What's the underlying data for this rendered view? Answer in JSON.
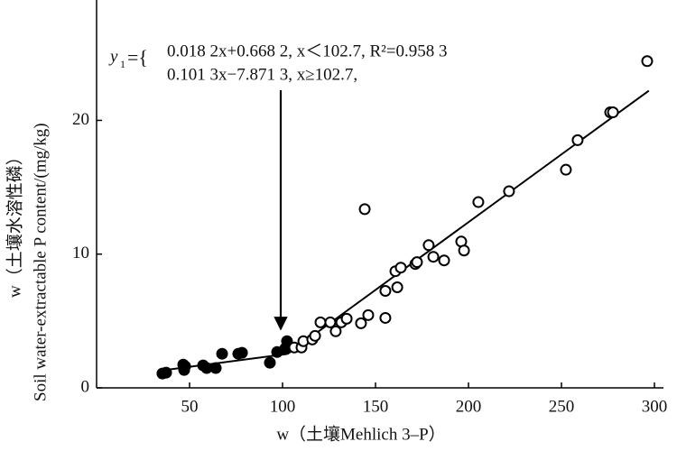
{
  "chart_data": {
    "type": "scatter",
    "x_label": "w（土壤Mehlich 3–P）",
    "y_label": [
      "w（土壤水溶性磷）",
      "Soil water-extractable P content/(mg/kg)"
    ],
    "annotation": {
      "label": "y",
      "subscript": "1",
      "sign": "={",
      "lines": [
        "0.018 2x+0.668 2,   x＜102.7, R²=0.958 3",
        "0.101 3x−7.871 3, x≥102.7,"
      ]
    },
    "xlim": [
      0,
      300
    ],
    "ylim": [
      0,
      29
    ],
    "xticks": [
      50,
      100,
      150,
      200,
      250,
      300
    ],
    "yticks": [
      0,
      10,
      20
    ],
    "series": [
      {
        "marker": "filled",
        "color": "#000000",
        "x": [
          35.4,
          37.4,
          46.6,
          47.1,
          47.6,
          57.3,
          59.2,
          64.1,
          67.5,
          76.2,
          78.2,
          93.2,
          97.1,
          101.5,
          102.4
        ],
        "values": [
          1.07,
          1.14,
          1.74,
          1.34,
          1.61,
          1.68,
          1.48,
          1.48,
          2.55,
          2.55,
          2.62,
          1.88,
          2.68,
          2.95,
          3.49
        ]
      },
      {
        "marker": "hollow",
        "color": "#000000",
        "x": [
          106.3,
          110.2,
          111.2,
          116,
          117.5,
          120.4,
          125.7,
          128.6,
          131.6,
          134.5,
          142.2,
          144.2,
          146.1,
          155.3,
          155.3,
          160.7,
          161.7,
          163.6,
          171.4,
          172.3,
          178.6,
          181.1,
          186.9,
          196.1,
          197.6,
          205.3,
          221.8,
          252.4,
          258.7,
          276.2,
          277.7,
          296.1
        ],
        "values": [
          3.02,
          3.02,
          3.49,
          3.62,
          3.89,
          4.9,
          4.9,
          4.23,
          4.9,
          5.17,
          4.83,
          13.36,
          5.44,
          5.23,
          7.25,
          8.72,
          7.52,
          8.99,
          9.26,
          9.4,
          10.67,
          9.8,
          9.53,
          10.94,
          10.27,
          13.89,
          14.7,
          16.31,
          18.52,
          20.6,
          20.6,
          24.43
        ]
      }
    ],
    "fit_lines": [
      {
        "color": "#000000",
        "x": [
          35,
          102.7
        ],
        "values": [
          1.3,
          2.54
        ]
      },
      {
        "color": "#000000",
        "x": [
          102.7,
          297
        ],
        "values": [
          2.53,
          22.22
        ]
      }
    ]
  }
}
